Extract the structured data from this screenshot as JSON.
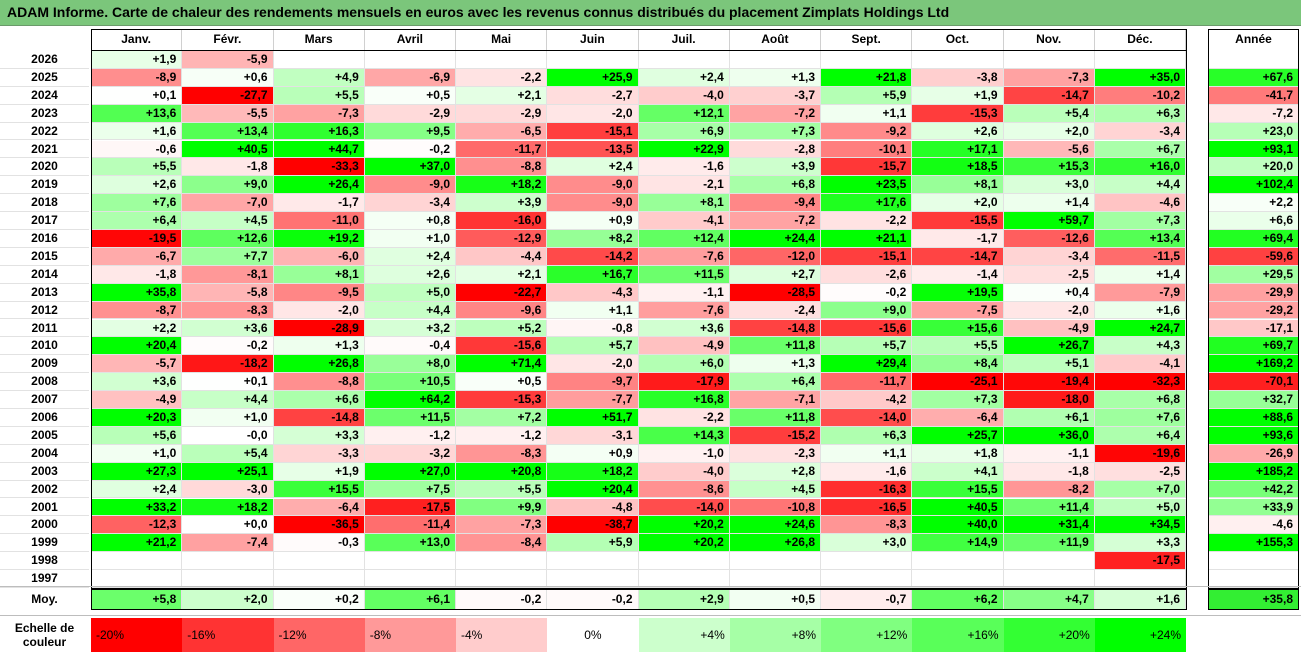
{
  "title": "ADAM Informe. Carte de chaleur des rendements mensuels en euros avec les revenus connus distribués du placement Zimplats Holdings Ltd",
  "chart_data": {
    "type": "heatmap",
    "columns": [
      "Janv.",
      "Févr.",
      "Mars",
      "Avril",
      "Mai",
      "Juin",
      "Juil.",
      "Août",
      "Sept.",
      "Oct.",
      "Nov.",
      "Déc."
    ],
    "annual_header": "Année",
    "rows": [
      {
        "year": "2026",
        "values": [
          "+1,9",
          "-5,9",
          "",
          "",
          "",
          "",
          "",
          "",
          "",
          "",
          "",
          ""
        ],
        "annual": ""
      },
      {
        "year": "2025",
        "values": [
          "-8,9",
          "+0,6",
          "+4,9",
          "-6,9",
          "-2,2",
          "+25,9",
          "+2,4",
          "+1,3",
          "+21,8",
          "-3,8",
          "-7,3",
          "+35,0"
        ],
        "annual": "+67,6"
      },
      {
        "year": "2024",
        "values": [
          "+0,1",
          "-27,7",
          "+5,5",
          "+0,5",
          "+2,1",
          "-2,7",
          "-4,0",
          "-3,7",
          "+5,9",
          "+1,9",
          "-14,7",
          "-10,2"
        ],
        "annual": "-41,7"
      },
      {
        "year": "2023",
        "values": [
          "+13,6",
          "-5,5",
          "-7,3",
          "-2,9",
          "-2,9",
          "-2,0",
          "+12,1",
          "-7,2",
          "+1,1",
          "-15,3",
          "+5,4",
          "+6,3"
        ],
        "annual": "-7,2"
      },
      {
        "year": "2022",
        "values": [
          "+1,6",
          "+13,4",
          "+16,3",
          "+9,5",
          "-6,5",
          "-15,1",
          "+6,9",
          "+7,3",
          "-9,2",
          "+2,6",
          "+2,0",
          "-3,4"
        ],
        "annual": "+23,0"
      },
      {
        "year": "2021",
        "values": [
          "-0,6",
          "+40,5",
          "+44,7",
          "-0,2",
          "-11,7",
          "-13,5",
          "+22,9",
          "-2,8",
          "-10,1",
          "+17,1",
          "-5,6",
          "+6,7"
        ],
        "annual": "+93,1"
      },
      {
        "year": "2020",
        "values": [
          "+5,5",
          "-1,8",
          "-33,3",
          "+37,0",
          "-8,8",
          "+2,4",
          "-1,6",
          "+3,9",
          "-15,7",
          "+18,5",
          "+15,3",
          "+16,0"
        ],
        "annual": "+20,0"
      },
      {
        "year": "2019",
        "values": [
          "+2,6",
          "+9,0",
          "+26,4",
          "-9,0",
          "+18,2",
          "-9,0",
          "-2,1",
          "+6,8",
          "+23,5",
          "+8,1",
          "+3,0",
          "+4,4"
        ],
        "annual": "+102,4"
      },
      {
        "year": "2018",
        "values": [
          "+7,6",
          "-7,0",
          "-1,7",
          "-3,4",
          "+3,9",
          "-9,0",
          "+8,1",
          "-9,4",
          "+17,6",
          "+2,0",
          "+1,4",
          "-4,6"
        ],
        "annual": "+2,2"
      },
      {
        "year": "2017",
        "values": [
          "+6,4",
          "+4,5",
          "-11,0",
          "+0,8",
          "-16,0",
          "+0,9",
          "-4,1",
          "-7,2",
          "-2,2",
          "-15,5",
          "+59,7",
          "+7,3"
        ],
        "annual": "+6,6"
      },
      {
        "year": "2016",
        "values": [
          "-19,5",
          "+12,6",
          "+19,2",
          "+1,0",
          "-12,9",
          "+8,2",
          "+12,4",
          "+24,4",
          "+21,1",
          "-1,7",
          "-12,6",
          "+13,4"
        ],
        "annual": "+69,4"
      },
      {
        "year": "2015",
        "values": [
          "-6,7",
          "+7,7",
          "-6,0",
          "+2,4",
          "-4,4",
          "-14,2",
          "-7,6",
          "-12,0",
          "-15,1",
          "-14,7",
          "-3,4",
          "-11,5"
        ],
        "annual": "-59,6"
      },
      {
        "year": "2014",
        "values": [
          "-1,8",
          "-8,1",
          "+8,1",
          "+2,6",
          "+2,1",
          "+16,7",
          "+11,5",
          "+2,7",
          "-2,6",
          "-1,4",
          "-2,5",
          "+1,4"
        ],
        "annual": "+29,5"
      },
      {
        "year": "2013",
        "values": [
          "+35,8",
          "-5,8",
          "-9,5",
          "+5,0",
          "-22,7",
          "-4,3",
          "-1,1",
          "-28,5",
          "-0,2",
          "+19,5",
          "+0,4",
          "-7,9"
        ],
        "annual": "-29,9"
      },
      {
        "year": "2012",
        "values": [
          "-8,7",
          "-8,3",
          "-2,0",
          "+4,4",
          "-9,6",
          "+1,1",
          "-7,6",
          "-2,4",
          "+9,0",
          "-7,5",
          "-2,0",
          "+1,6"
        ],
        "annual": "-29,2"
      },
      {
        "year": "2011",
        "values": [
          "+2,2",
          "+3,6",
          "-28,9",
          "+3,2",
          "+5,2",
          "-0,8",
          "+3,6",
          "-14,8",
          "-15,6",
          "+15,6",
          "-4,9",
          "+24,7"
        ],
        "annual": "-17,1"
      },
      {
        "year": "2010",
        "values": [
          "+20,4",
          "-0,2",
          "+1,3",
          "-0,4",
          "-15,6",
          "+5,7",
          "-4,9",
          "+11,8",
          "+5,7",
          "+5,5",
          "+26,7",
          "+4,3"
        ],
        "annual": "+69,7"
      },
      {
        "year": "2009",
        "values": [
          "-5,7",
          "-18,2",
          "+26,8",
          "+8,0",
          "+71,4",
          "-2,0",
          "+6,0",
          "+1,3",
          "+29,4",
          "+8,4",
          "+5,1",
          "-4,1"
        ],
        "annual": "+169,2"
      },
      {
        "year": "2008",
        "values": [
          "+3,6",
          "+0,1",
          "-8,8",
          "+10,5",
          "+0,5",
          "-9,7",
          "-17,9",
          "+6,4",
          "-11,7",
          "-25,1",
          "-19,4",
          "-32,3"
        ],
        "annual": "-70,1"
      },
      {
        "year": "2007",
        "values": [
          "-4,9",
          "+4,4",
          "+6,6",
          "+64,2",
          "-15,3",
          "-7,7",
          "+16,8",
          "-7,1",
          "-4,2",
          "+7,3",
          "-18,0",
          "+6,8"
        ],
        "annual": "+32,7"
      },
      {
        "year": "2006",
        "values": [
          "+20,3",
          "+1,0",
          "-14,8",
          "+11,5",
          "+7,2",
          "+51,7",
          "-2,2",
          "+11,8",
          "-14,0",
          "-6,4",
          "+6,1",
          "+7,6"
        ],
        "annual": "+88,6"
      },
      {
        "year": "2005",
        "values": [
          "+5,6",
          "-0,0",
          "+3,3",
          "-1,2",
          "-1,2",
          "-3,1",
          "+14,3",
          "-15,2",
          "+6,3",
          "+25,7",
          "+36,0",
          "+6,4"
        ],
        "annual": "+93,6"
      },
      {
        "year": "2004",
        "values": [
          "+1,0",
          "+5,4",
          "-3,3",
          "-3,2",
          "-8,3",
          "+0,9",
          "-1,0",
          "-2,3",
          "+1,1",
          "+1,8",
          "-1,1",
          "-19,6"
        ],
        "annual": "-26,9"
      },
      {
        "year": "2003",
        "values": [
          "+27,3",
          "+25,1",
          "+1,9",
          "+27,0",
          "+20,8",
          "+18,2",
          "-4,0",
          "+2,8",
          "-1,6",
          "+4,1",
          "-1,8",
          "-2,5"
        ],
        "annual": "+185,2"
      },
      {
        "year": "2002",
        "values": [
          "+2,4",
          "-3,0",
          "+15,5",
          "+7,5",
          "+5,5",
          "+20,4",
          "-8,6",
          "+4,5",
          "-16,3",
          "+15,5",
          "-8,2",
          "+7,0"
        ],
        "annual": "+42,2"
      },
      {
        "year": "2001",
        "values": [
          "+33,2",
          "+18,2",
          "-6,4",
          "-17,5",
          "+9,9",
          "-4,8",
          "-14,0",
          "-10,8",
          "-16,5",
          "+40,5",
          "+11,4",
          "+5,0"
        ],
        "annual": "+33,9"
      },
      {
        "year": "2000",
        "values": [
          "-12,3",
          "+0,0",
          "-36,5",
          "-11,4",
          "-7,3",
          "-38,7",
          "+20,2",
          "+24,6",
          "-8,3",
          "+40,0",
          "+31,4",
          "+34,5"
        ],
        "annual": "-4,6"
      },
      {
        "year": "1999",
        "values": [
          "+21,2",
          "-7,4",
          "-0,3",
          "+13,0",
          "-8,4",
          "+5,9",
          "+20,2",
          "+26,8",
          "+3,0",
          "+14,9",
          "+11,9",
          "+3,3"
        ],
        "annual": "+155,3"
      },
      {
        "year": "1998",
        "values": [
          "",
          "",
          "",
          "",
          "",
          "",
          "",
          "",
          "",
          "",
          "",
          "-17,5"
        ],
        "annual": ""
      },
      {
        "year": "1997",
        "values": [
          "",
          "",
          "",
          "",
          "",
          "",
          "",
          "",
          "",
          "",
          "",
          ""
        ],
        "annual": ""
      }
    ],
    "average": {
      "label": "Moy.",
      "values": [
        "+5,8",
        "+2,0",
        "+0,2",
        "+6,1",
        "-0,2",
        "-0,2",
        "+2,9",
        "+0,5",
        "-0,7",
        "+6,2",
        "+4,7",
        "+1,6"
      ],
      "annual": "+35,8"
    },
    "legend": {
      "title": "Echelle de couleur",
      "stops": [
        "-20%",
        "-16%",
        "-12%",
        "-8%",
        "-4%",
        "0%",
        "+4%",
        "+8%",
        "+12%",
        "+16%",
        "+20%",
        "+24%"
      ],
      "colors": [
        "#ff0000",
        "#ff3333",
        "#ff6666",
        "#ff9999",
        "#ffcccc",
        "#ffffff",
        "#ccffcc",
        "#a6ffa6",
        "#80ff80",
        "#59ff59",
        "#33ff33",
        "#00ff00"
      ]
    }
  }
}
